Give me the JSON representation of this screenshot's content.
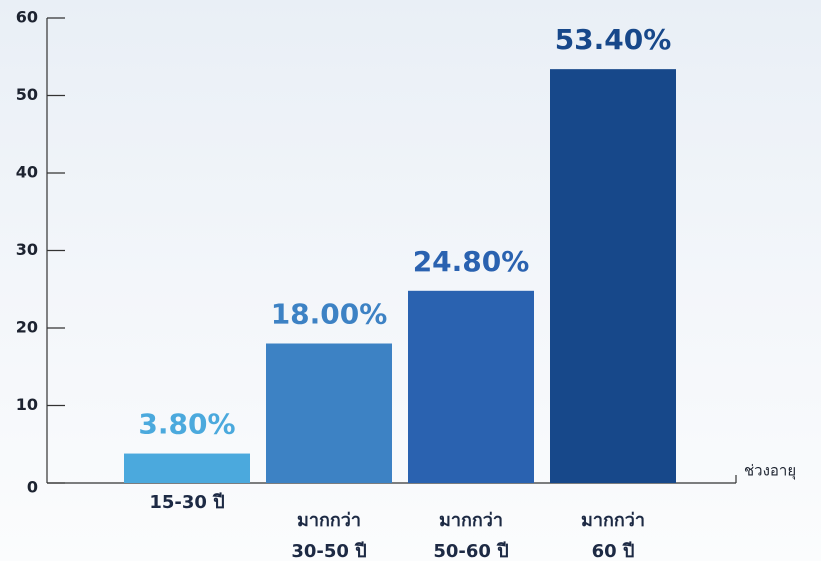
{
  "chart_data": {
    "type": "bar",
    "categories": [
      [
        "15-30 ปี"
      ],
      [
        "มากกว่า",
        "30-50 ปี"
      ],
      [
        "มากกว่า",
        "50-60 ปี"
      ],
      [
        "มากกว่า",
        "60 ปี"
      ]
    ],
    "values": [
      3.8,
      18.0,
      24.8,
      53.4
    ],
    "value_labels": [
      "3.80%",
      "18.00%",
      "24.80%",
      "53.40%"
    ],
    "colors": [
      "#4ba9dd",
      "#3d82c4",
      "#2a62b0",
      "#17488a"
    ],
    "x_label": "ช่วงอายุ",
    "ylim": [
      0,
      60
    ],
    "yticks": [
      0,
      10,
      20,
      30,
      40,
      50,
      60
    ]
  }
}
